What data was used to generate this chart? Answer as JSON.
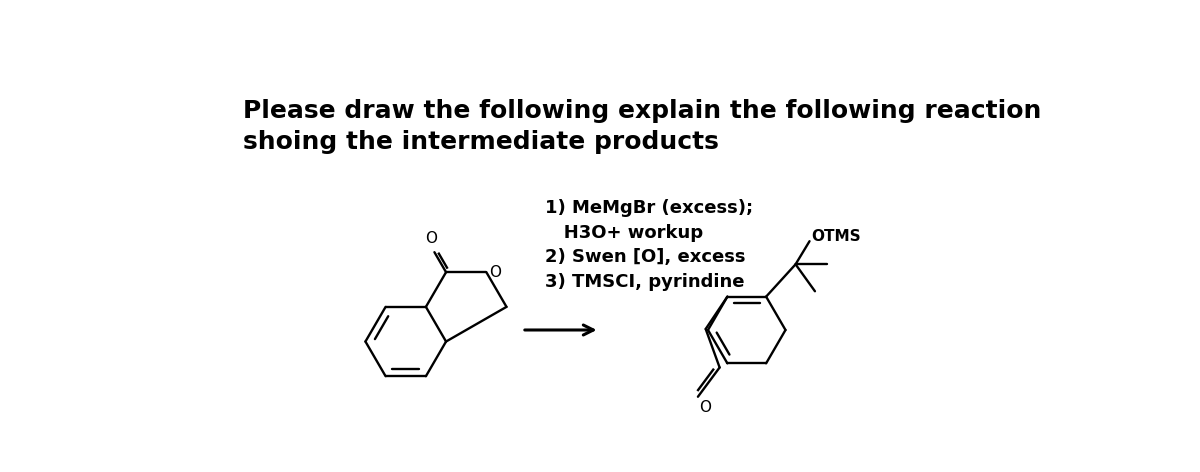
{
  "title_line1": "Please draw the following explain the following reaction",
  "title_line2": "shoing the intermediate products",
  "reagents": [
    "1) MeMgBr (excess);",
    "   H3O+ workup",
    "2) Swen [O], excess",
    "3) TMSCI, pyrindine"
  ],
  "otms_label": "OTMS",
  "background_color": "#ffffff",
  "text_color": "#000000",
  "title_fontsize": 18,
  "reagent_fontsize": 13,
  "lw": 1.7
}
